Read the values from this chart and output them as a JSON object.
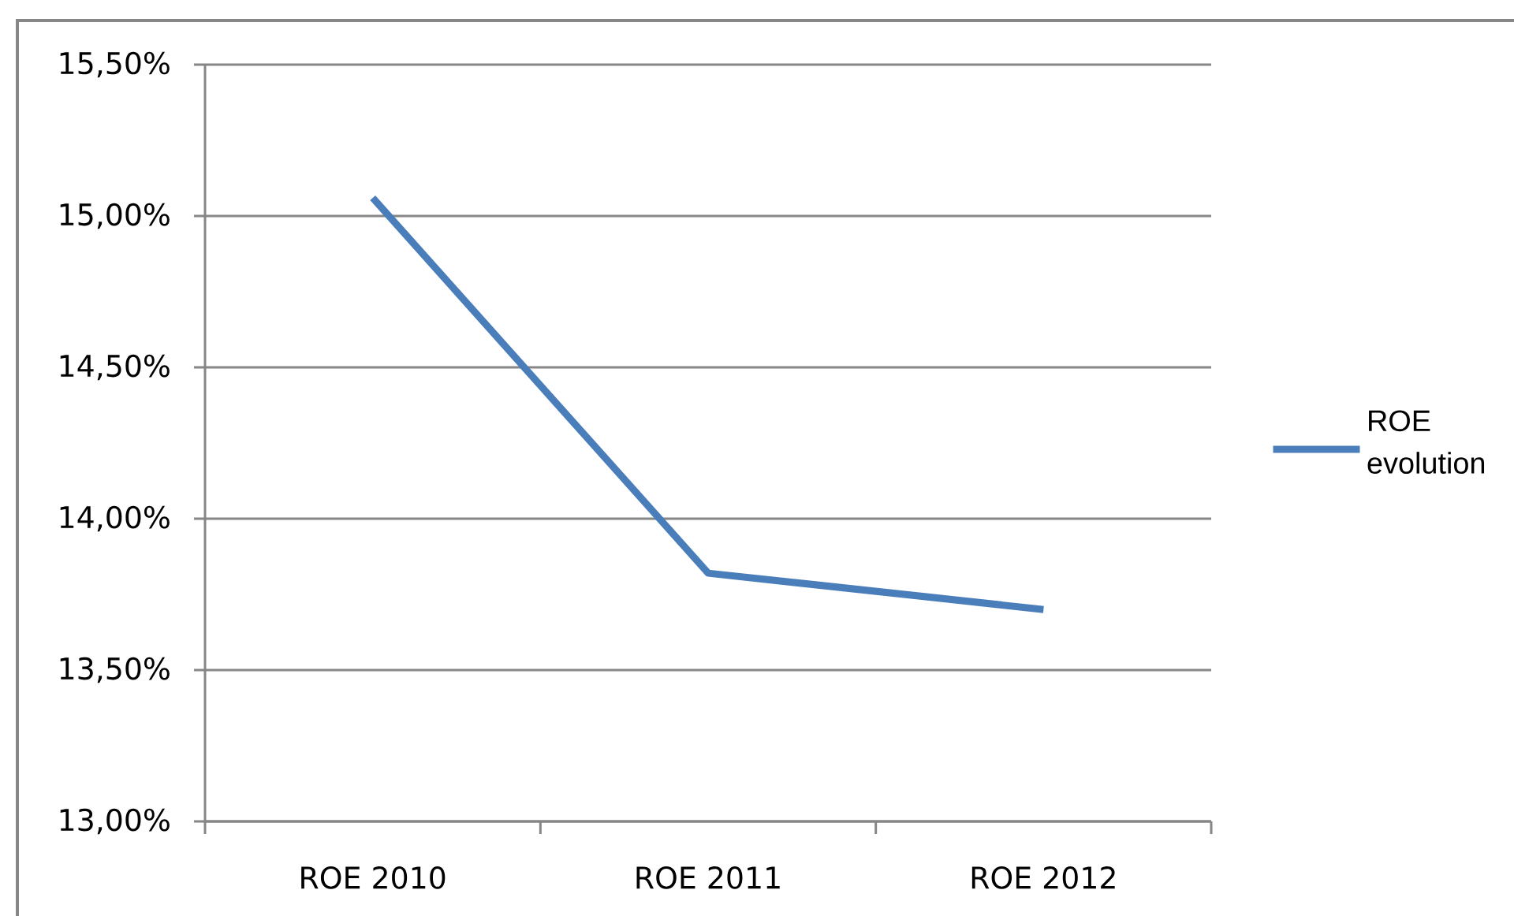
{
  "chart_data": {
    "type": "line",
    "categories": [
      "ROE 2010",
      "ROE 2011",
      "ROE 2012"
    ],
    "series": [
      {
        "name": "ROE evolution",
        "color": "#4a7ebb",
        "values": [
          15.06,
          13.82,
          13.7
        ]
      }
    ],
    "ylim": [
      13,
      15.5
    ],
    "yticks": [
      {
        "value": 13,
        "label": "13,00%"
      },
      {
        "value": 13.5,
        "label": "13,50%"
      },
      {
        "value": 14,
        "label": "14,00%"
      },
      {
        "value": 14.5,
        "label": "14,50%"
      },
      {
        "value": 15,
        "label": "15,00%"
      },
      {
        "value": 15.5,
        "label": "15,50%"
      }
    ],
    "grid": "y",
    "legend": "right",
    "line_style": "solid"
  }
}
